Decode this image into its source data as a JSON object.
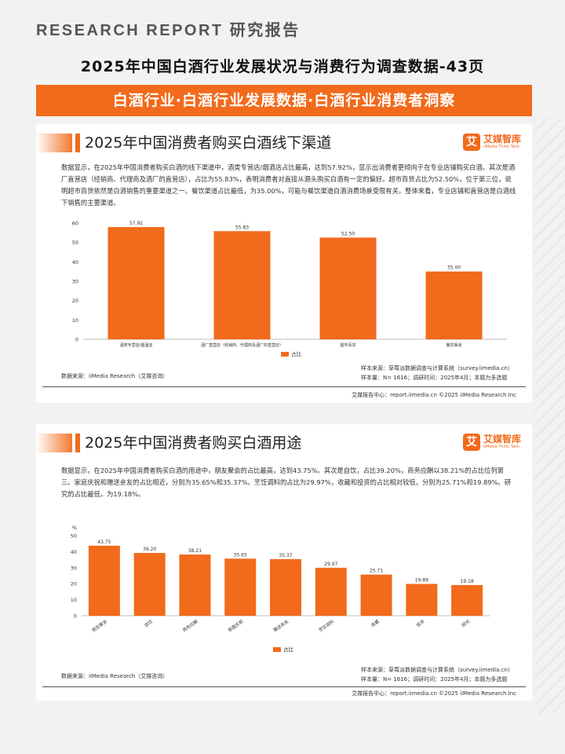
{
  "header": {
    "research_label": "RESEARCH REPORT 研究报告",
    "main_title": "2025年中国白酒行业发展状况与消费行为调查数据-43页",
    "banner": "白酒行业·白酒行业发展数据·白酒行业消费者洞察"
  },
  "logo": {
    "mark": "艾",
    "cn": "艾媒智库",
    "en": "iiMedia Think Tank"
  },
  "card1": {
    "title": "2025年中国消费者购买白酒线下渠道",
    "desc": "数据显示，在2025年中国消费者购买白酒的线下渠道中，酒类专营店/烟酒店占比最高，达到57.92%，显示出消费者更倾向于在专业店铺购买白酒。其次是酒厂直营店（经销商、代理商及酒厂的直营店），占比为55.83%，表明消费者对直接从源头购买白酒有一定的偏好。超市百货占比为52.50%，位于第三位，说明超市百货依然是白酒销售的重要渠道之一。餐饮渠道占比最低，为35.00%，可能与餐饮渠道白酒消费场景受限有关。整体来看，专业店铺和直营店是白酒线下销售的主要渠道。",
    "source": "数据来源：iiMedia Research（艾媒咨询）",
    "sample_source": "样本来源：草莓派数据调查与计算系统（survey.iimedia.cn）",
    "sample_size": "样本量：N= 1616；调研时间：2025年4月；本题为多选题",
    "footer": "艾媒报告中心：report.iimedia.cn  ©2025 iiMedia Research Inc"
  },
  "card2": {
    "title": "2025年中国消费者购买白酒用途",
    "desc": "数据显示，在2025年中国消费者购买白酒的用途中，朋友聚会的占比最高，达到43.75%。其次是自饮，占比39.20%，商务应酬以38.21%的占比位列第三。家庭庆祝和赠送亲友的占比相近，分别为35.65%和35.37%。烹饪调料的占比为29.97%，收藏和投资的占比相对较低，分别为25.71%和19.89%。研究的占比最低，为19.18%。",
    "source": "数据来源：iiMedia Research（艾媒咨询）",
    "sample_source": "样本来源：草莓派数据调查与计算系统（survey.iimedia.cn）",
    "sample_size": "样本量：N= 1616；调研时间：2025年4月；本题为多选题",
    "footer": "艾媒报告中心：report.iimedia.cn  ©2025 iiMedia Research Inc"
  },
  "chart_data": [
    {
      "type": "bar",
      "categories": [
        "酒类专营店/烟酒店",
        "酒厂直营店（经销商、代理商及酒厂的直营店）",
        "超市百货",
        "餐饮渠道"
      ],
      "values": [
        57.92,
        55.83,
        52.5,
        35.0
      ],
      "value_labels": [
        "57.92",
        "55.83",
        "52.50",
        "35.00"
      ],
      "legend": "占比",
      "yticks": [
        "0",
        "10",
        "20",
        "30",
        "40",
        "50",
        "60"
      ],
      "ylim": [
        0,
        60
      ],
      "color": "#f26a1b",
      "grid": false,
      "legend_placement": "bottom"
    },
    {
      "type": "bar",
      "categories": [
        "朋友聚会",
        "自饮",
        "商务应酬",
        "家庭庆祝",
        "赠送亲友",
        "烹饪调料",
        "收藏",
        "投资",
        "研究"
      ],
      "values": [
        43.75,
        39.2,
        38.21,
        35.65,
        35.37,
        29.97,
        25.71,
        19.89,
        19.18
      ],
      "value_labels": [
        "43.75",
        "39.20",
        "38.21",
        "35.65",
        "35.37",
        "29.97",
        "25.71",
        "19.89",
        "19.18"
      ],
      "legend": "占比",
      "unit": "%",
      "yticks": [
        "0",
        "10",
        "20",
        "30",
        "40",
        "50"
      ],
      "ylim": [
        0,
        50
      ],
      "color": "#f26a1b",
      "grid": false,
      "legend_placement": "bottom"
    }
  ]
}
